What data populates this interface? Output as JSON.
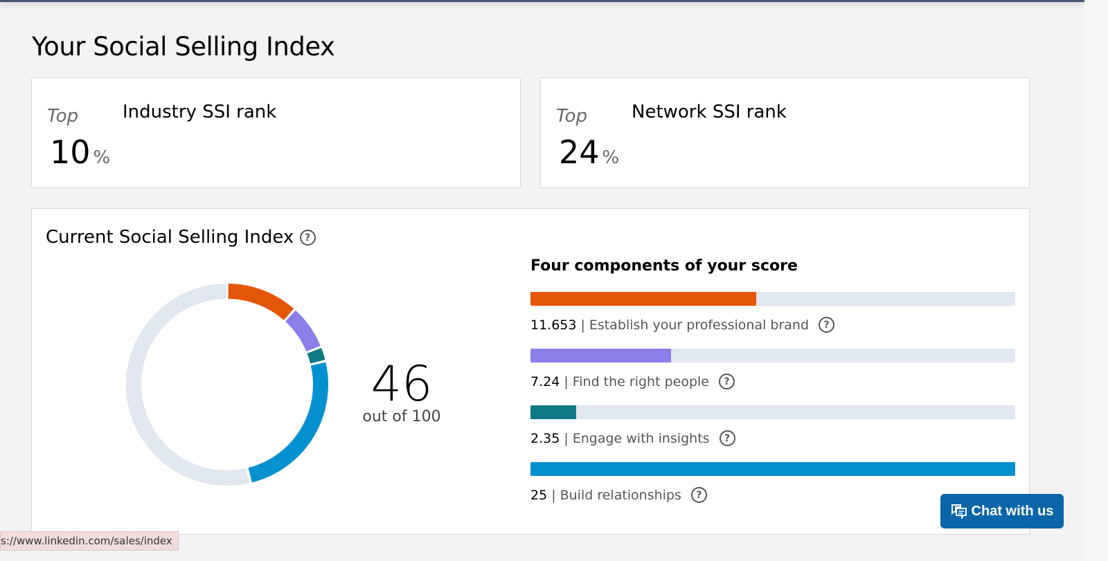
{
  "page_title": "Your Social Selling Index",
  "industry": {
    "top": "Top",
    "label": "Industry SSI rank",
    "value": "10",
    "unit": "%"
  },
  "network": {
    "top": "Top",
    "label": "Network SSI rank",
    "value": "24",
    "unit": "%"
  },
  "current": {
    "title": "Current Social Selling Index",
    "help": "?",
    "score": "46",
    "out_of": "out of 100"
  },
  "components_title": "Four components of your score",
  "components": [
    {
      "value": "11.653",
      "num": 11.653,
      "label": "Establish your professional brand",
      "color": "#e4560a"
    },
    {
      "value": "7.24",
      "num": 7.24,
      "label": "Find the right people",
      "color": "#8a7ee8"
    },
    {
      "value": "2.35",
      "num": 2.35,
      "label": "Engage with insights",
      "color": "#0e7a86"
    },
    {
      "value": "25",
      "num": 25,
      "label": "Build relationships",
      "color": "#0591cf"
    }
  ],
  "component_max": 25,
  "donut_track_color": "#e1e7ee",
  "chat_label": "Chat with us",
  "status_url": "s://www.linkedin.com/sales/index"
}
